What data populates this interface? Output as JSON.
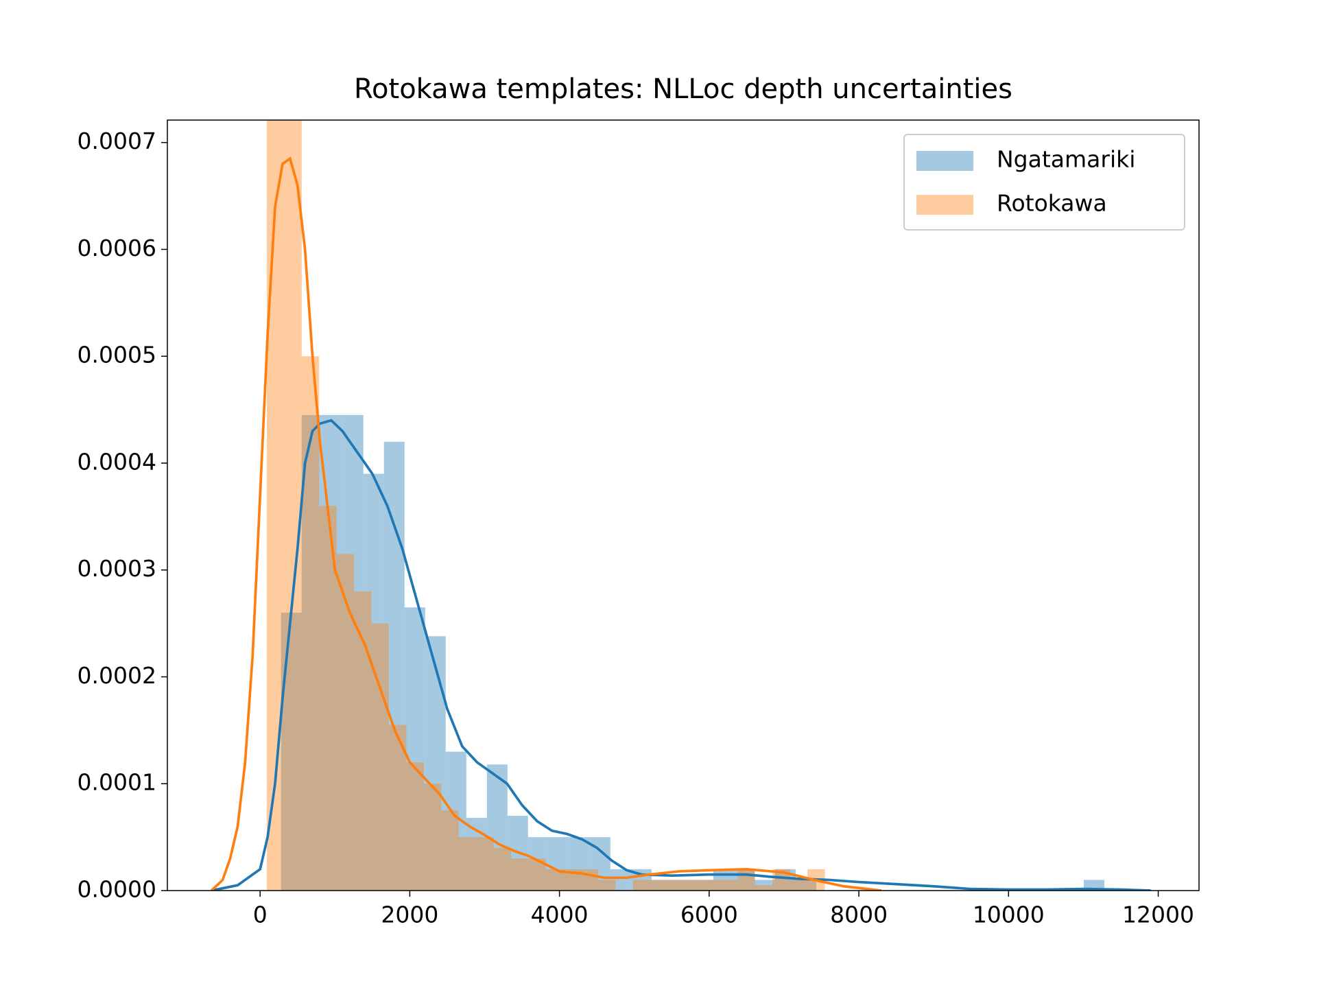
{
  "chart_data": {
    "type": "histogram",
    "title": "Rotokawa templates: NLLoc depth uncertainties",
    "xlim": [
      -1239,
      12545
    ],
    "ylim": [
      0,
      0.000721
    ],
    "xticks": [
      0,
      2000,
      4000,
      6000,
      8000,
      10000,
      12000
    ],
    "yticks": [
      {
        "value": 0,
        "label": "0.0000"
      },
      {
        "value": 0.0001,
        "label": "0.0001"
      },
      {
        "value": 0.0002,
        "label": "0.0002"
      },
      {
        "value": 0.0003,
        "label": "0.0003"
      },
      {
        "value": 0.0004,
        "label": "0.0004"
      },
      {
        "value": 0.0005,
        "label": "0.0005"
      },
      {
        "value": 0.0006,
        "label": "0.0006"
      },
      {
        "value": 0.0007,
        "label": "0.0007"
      }
    ],
    "legend": "upper right",
    "opacity": 0.4,
    "series": [
      {
        "name": "Ngatamariki",
        "color": "#1f77b4",
        "bins": [
          280,
          555,
          830,
          1105,
          1380,
          1655,
          1930,
          2205,
          2480,
          2755,
          3030,
          3305,
          3580,
          3855,
          4130,
          4405,
          4680,
          4955,
          5230,
          5505,
          5780,
          6055,
          6330,
          6605,
          6880,
          7155,
          7430,
          7705,
          7980,
          8255,
          8530,
          8805,
          9080,
          9355,
          9630,
          9905,
          10180,
          10455,
          10730,
          11005,
          11280,
          11555,
          11830
        ],
        "values": [
          0.00026,
          0.000445,
          0.000445,
          0.000445,
          0.00039,
          0.00042,
          0.000265,
          0.000238,
          0.00013,
          6.8e-05,
          0.000118,
          7e-05,
          5e-05,
          5e-05,
          5e-05,
          5e-05,
          2e-05,
          2e-05,
          1e-05,
          1e-05,
          1e-05,
          2e-05,
          2e-05,
          1e-05,
          2e-05,
          1e-05,
          0,
          0,
          0,
          0,
          0,
          0,
          0,
          0,
          0,
          0,
          0,
          0,
          0,
          1e-05,
          0,
          0
        ],
        "kde_x": [
          -650,
          -300,
          0,
          100,
          200,
          300,
          400,
          500,
          600,
          700,
          800,
          950,
          1100,
          1300,
          1500,
          1700,
          1900,
          2100,
          2300,
          2500,
          2700,
          2900,
          3100,
          3300,
          3500,
          3700,
          3900,
          4100,
          4300,
          4500,
          4700,
          4900,
          5100,
          5500,
          6000,
          6500,
          6800,
          7200,
          7600,
          8000,
          8500,
          9000,
          9500,
          10000,
          10500,
          11000,
          11500,
          11900
        ],
        "kde_y": [
          0,
          5e-06,
          2e-05,
          5e-05,
          0.0001,
          0.00018,
          0.00025,
          0.00032,
          0.0004,
          0.00043,
          0.000437,
          0.00044,
          0.00043,
          0.00041,
          0.00039,
          0.00036,
          0.00032,
          0.00027,
          0.00022,
          0.00017,
          0.000135,
          0.00012,
          0.00011,
          0.0001,
          8e-05,
          6.5e-05,
          5.6e-05,
          5.3e-05,
          4.8e-05,
          4e-05,
          2.8e-05,
          1.9e-05,
          1.5e-05,
          1.4e-05,
          1.5e-05,
          1.5e-05,
          1.3e-05,
          1.1e-05,
          1e-05,
          8e-06,
          6e-06,
          4e-06,
          1.5e-06,
          1e-06,
          1e-06,
          1.5e-06,
          1e-06,
          0
        ]
      },
      {
        "name": "Rotokawa",
        "color": "#ff7f0e",
        "bins": [
          90,
          323,
          556,
          789,
          1022,
          1255,
          1488,
          1721,
          1954,
          2187,
          2420,
          2653,
          2886,
          3119,
          3352,
          3585,
          3818,
          4051,
          4284,
          4517,
          4750,
          4983,
          5216,
          5449,
          5682,
          5915,
          6148,
          6381,
          6614,
          6847,
          7080,
          7313,
          7546
        ],
        "values": [
          0.00076,
          0.00074,
          0.0005,
          0.00036,
          0.000315,
          0.00028,
          0.00025,
          0.000155,
          0.00012,
          0.0001,
          7.5e-05,
          5e-05,
          5e-05,
          4e-05,
          3e-05,
          3e-05,
          2e-05,
          2e-05,
          2e-05,
          1e-05,
          0,
          1e-05,
          1e-05,
          1e-05,
          1e-05,
          1e-05,
          1e-05,
          2e-05,
          5e-06,
          2e-05,
          1e-05,
          2e-05
        ],
        "kde_x": [
          -650,
          -500,
          -400,
          -300,
          -200,
          -100,
          0,
          100,
          200,
          300,
          400,
          500,
          600,
          700,
          800,
          900,
          1000,
          1200,
          1400,
          1600,
          1800,
          2000,
          2200,
          2400,
          2600,
          2800,
          3000,
          3200,
          3400,
          3600,
          3800,
          4000,
          4300,
          4600,
          4900,
          5200,
          5600,
          6000,
          6500,
          7000,
          7400,
          7800,
          8300
        ],
        "kde_y": [
          0,
          1e-05,
          3e-05,
          6e-05,
          0.00012,
          0.00022,
          0.00037,
          0.00052,
          0.00064,
          0.00068,
          0.000685,
          0.00066,
          0.0006,
          0.0005,
          0.00042,
          0.00036,
          0.0003,
          0.00026,
          0.00023,
          0.00019,
          0.00015,
          0.00012,
          0.000105,
          9e-05,
          7e-05,
          6e-05,
          5.2e-05,
          4.3e-05,
          3.7e-05,
          3.2e-05,
          2.5e-05,
          1.8e-05,
          1.6e-05,
          1.2e-05,
          1.2e-05,
          1.5e-05,
          1.8e-05,
          1.9e-05,
          2e-05,
          1.7e-05,
          1e-05,
          4e-06,
          0
        ]
      }
    ]
  }
}
